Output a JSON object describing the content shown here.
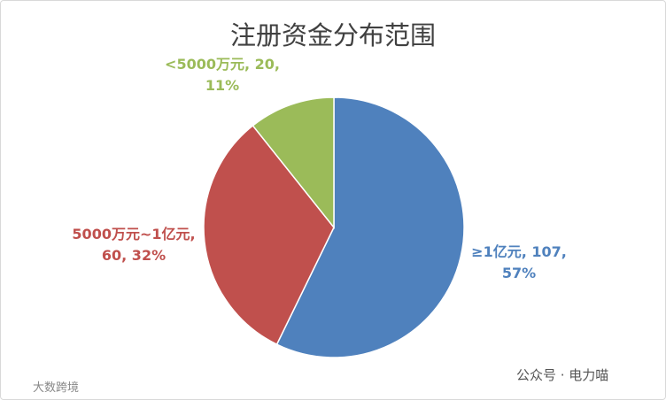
{
  "chart_data": {
    "type": "pie",
    "title": "注册资金分布范围",
    "categories": [
      "≥1亿元",
      "5000万元~1亿元",
      "<5000万元"
    ],
    "values": [
      107,
      60,
      20
    ],
    "value_labels": [
      "≥1亿元, 107, 57%",
      "5000万元~1亿元, 60, 32%",
      "<5000万元, 20, 11%"
    ],
    "colors": [
      "#4f81bd",
      "#c0504d",
      "#9bbb59"
    ]
  },
  "watermarks": [
    "公众号 · 电力喵",
    "大数跨境"
  ]
}
